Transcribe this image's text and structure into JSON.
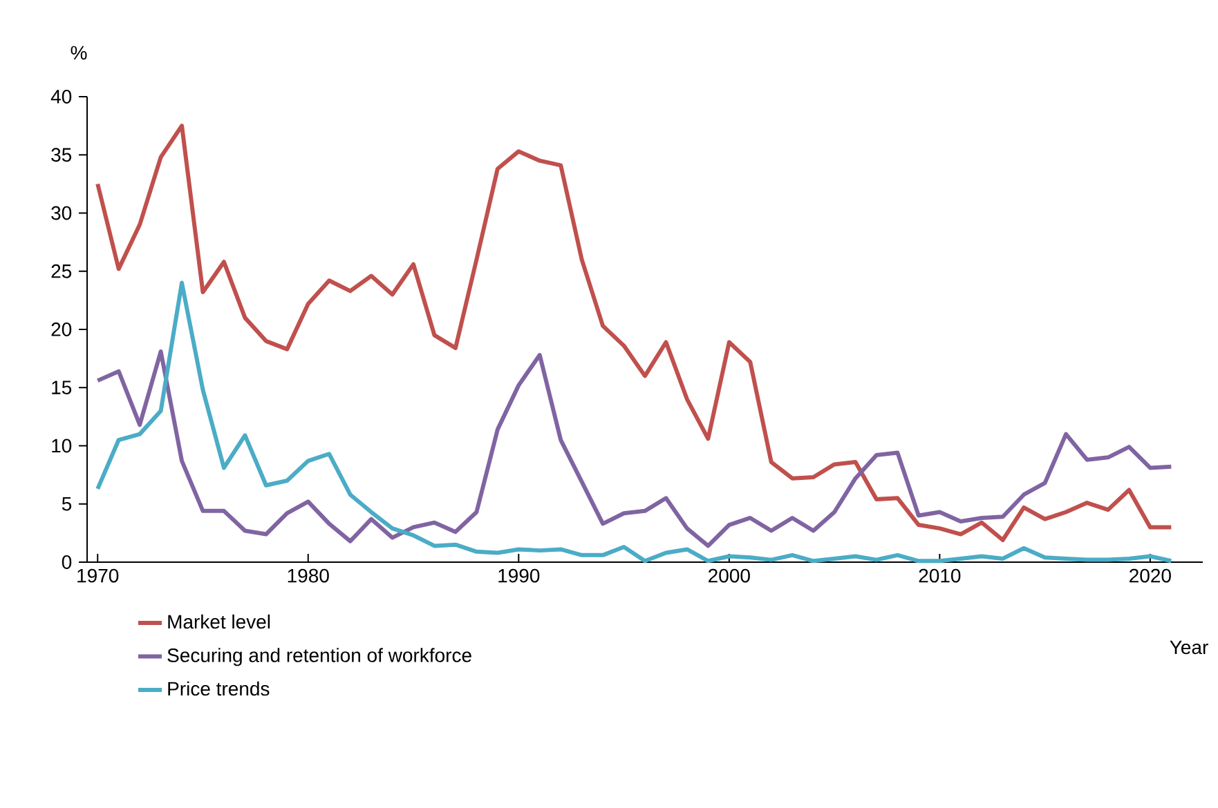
{
  "chart_data": {
    "type": "line",
    "xlabel": "Year",
    "ylabel": "%",
    "x": [
      1970,
      1971,
      1972,
      1973,
      1974,
      1975,
      1976,
      1977,
      1978,
      1979,
      1980,
      1981,
      1982,
      1983,
      1984,
      1985,
      1986,
      1987,
      1988,
      1989,
      1990,
      1991,
      1992,
      1993,
      1994,
      1995,
      1996,
      1997,
      1998,
      1999,
      2000,
      2001,
      2002,
      2003,
      2004,
      2005,
      2006,
      2007,
      2008,
      2009,
      2010,
      2011,
      2012,
      2013,
      2014,
      2015,
      2016,
      2017,
      2018,
      2019,
      2020,
      2021
    ],
    "xlim": [
      1969.5,
      2022.5
    ],
    "xticks": [
      1970,
      1980,
      1990,
      2000,
      2010,
      2020
    ],
    "ylim": [
      0,
      40
    ],
    "yticks": [
      0,
      5,
      10,
      15,
      20,
      25,
      30,
      35,
      40
    ],
    "legend": "bottom",
    "series": [
      {
        "name": "Market level",
        "color": "#c0504d",
        "values": [
          32.5,
          25.2,
          29,
          34.8,
          37.5,
          23.2,
          25.8,
          21,
          19,
          18.3,
          22.2,
          24.2,
          23.3,
          24.6,
          23,
          25.6,
          19.5,
          18.4,
          26,
          33.8,
          35.3,
          34.5,
          34.1,
          26,
          20.3,
          18.6,
          16,
          18.9,
          14,
          10.6,
          18.9,
          17.2,
          8.6,
          7.2,
          7.3,
          8.4,
          8.6,
          5.4,
          5.5,
          3.2,
          2.9,
          2.4,
          3.4,
          1.9,
          4.7,
          3.7,
          4.3,
          5.1,
          4.5,
          6.2,
          3.0,
          3.0
        ]
      },
      {
        "name": "Securing and retention of workforce",
        "color": "#8064a2",
        "values": [
          15.6,
          16.4,
          11.8,
          18.1,
          8.7,
          4.4,
          4.4,
          2.7,
          2.4,
          4.2,
          5.2,
          3.3,
          1.8,
          3.7,
          2.1,
          3.0,
          3.4,
          2.6,
          4.3,
          11.4,
          15.2,
          17.8,
          10.5,
          6.9,
          3.3,
          4.2,
          4.4,
          5.5,
          2.9,
          1.4,
          3.2,
          3.8,
          2.7,
          3.8,
          2.7,
          4.3,
          7.2,
          9.2,
          9.4,
          4.0,
          4.3,
          3.5,
          3.8,
          3.9,
          5.8,
          6.8,
          11,
          8.8,
          9.0,
          9.9,
          8.1,
          8.2
        ]
      },
      {
        "name": "Price trends",
        "color": "#4bacc6",
        "values": [
          6.3,
          10.5,
          11,
          13,
          24,
          14.8,
          8.1,
          10.9,
          6.6,
          7.0,
          8.7,
          9.3,
          5.8,
          4.3,
          2.9,
          2.3,
          1.4,
          1.5,
          0.9,
          0.8,
          1.1,
          1.0,
          1.1,
          0.6,
          0.6,
          1.3,
          0.1,
          0.8,
          1.1,
          0.1,
          0.5,
          0.4,
          0.2,
          0.6,
          0.1,
          0.3,
          0.5,
          0.2,
          0.6,
          0.1,
          0.1,
          0.3,
          0.5,
          0.3,
          1.2,
          0.4,
          0.3,
          0.2,
          0.2,
          0.3,
          0.5,
          0.1
        ]
      }
    ]
  }
}
